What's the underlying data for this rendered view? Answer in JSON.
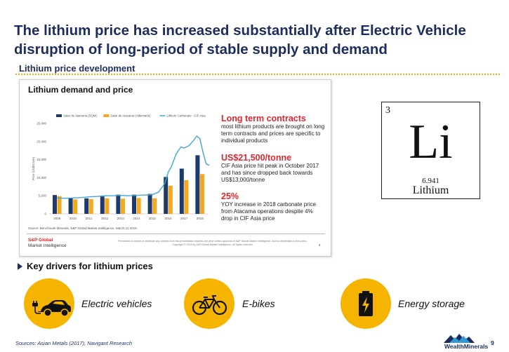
{
  "slide": {
    "title": "The lithium price has increased substantially after Electric Vehicle disruption of long-period of stable supply and demand",
    "subtitle": "Lithium price development",
    "key_drivers_title": "Key drivers for lithium prices",
    "sources": "Sources: Asian Metals (2017), Navigant Research",
    "logo_text": "WealthMinerals",
    "page_number": "9"
  },
  "panel": {
    "title": "Lithium demand and price",
    "source_note": "Source: Benchmark Minerals, S&P Global Market Intelligence, March 11 2019.",
    "brand_line1": "S&P Global",
    "brand_line2": "Market Intelligence",
    "footer_note": "Permission to reprint or distribute any content from this presentation requires the prior written approval of S&P Global Market Intelligence. Not for distribution to the public. Copyright © 2019 by S&P Global Market Intelligence. All rights reserved.",
    "page": "4",
    "highlights": [
      {
        "heading": "Long term contracts",
        "text": "most lithium products are brought on long term contracts and prices are specific to individual products"
      },
      {
        "heading": "US$21,500/tonne",
        "text": "CIF Asia price hit peak in October 2017 and has since dropped back towards US$13,000/tonne"
      },
      {
        "heading": "25%",
        "text": "YOY increase in 2018 carbonate price from Atacama operations despite 4% drop in CIF Asia price"
      }
    ]
  },
  "chart_data": {
    "type": "bar",
    "title": "",
    "ylabel": "Price (US$/tonne)",
    "xlabel": "",
    "categories": [
      "2009",
      "2010",
      "2011",
      "2012",
      "2013",
      "2014",
      "2015",
      "2016",
      "2017",
      "2018"
    ],
    "ylim": [
      0,
      25000
    ],
    "yticks": [
      "0",
      "5,000",
      "10,000",
      "15,000",
      "20,000",
      "25,000"
    ],
    "series": [
      {
        "name": "Salar de Atacama (SQM)",
        "kind": "bar",
        "color": "#1c3a6b",
        "values": [
          5200,
          4400,
          4300,
          4800,
          5300,
          5300,
          5500,
          10200,
          12500,
          16200
        ]
      },
      {
        "name": "Salar de Atacama (Albemarle)",
        "kind": "bar",
        "color": "#f4a81d",
        "values": [
          4900,
          4000,
          4100,
          4300,
          4200,
          4400,
          4300,
          7800,
          9300,
          11000
        ]
      },
      {
        "name": "Lithium Carbonate - CIF Asia",
        "kind": "line",
        "color": "#3fa6d6",
        "x": [
          2009.0,
          2009.5,
          2010.0,
          2010.5,
          2011.0,
          2011.5,
          2012.0,
          2012.5,
          2013.0,
          2013.5,
          2014.0,
          2014.5,
          2015.0,
          2015.4,
          2015.8,
          2016.0,
          2016.2,
          2016.5,
          2016.8,
          2017.0,
          2017.3,
          2017.6,
          2017.8,
          2018.0,
          2018.2,
          2018.4,
          2018.6
        ],
        "values": [
          4400,
          4300,
          4400,
          4500,
          4700,
          4800,
          5000,
          5000,
          5100,
          5000,
          5100,
          5200,
          5300,
          6000,
          8500,
          11500,
          13000,
          16500,
          18500,
          18200,
          18800,
          20300,
          21500,
          20800,
          17000,
          13800,
          13400
        ]
      }
    ],
    "grid": false,
    "legend_position": "top"
  },
  "element": {
    "number": "3",
    "symbol": "Li",
    "mass": "6.941",
    "name": "Lithium"
  },
  "drivers": [
    {
      "label": "Electric vehicles",
      "icon": "electric-car-icon"
    },
    {
      "label": "E-bikes",
      "icon": "bicycle-icon"
    },
    {
      "label": "Energy storage",
      "icon": "battery-icon"
    }
  ],
  "colors": {
    "navy": "#1c2d5e",
    "gold": "#f4b400",
    "red": "#e0262f",
    "line_blue": "#3fa6d6"
  }
}
